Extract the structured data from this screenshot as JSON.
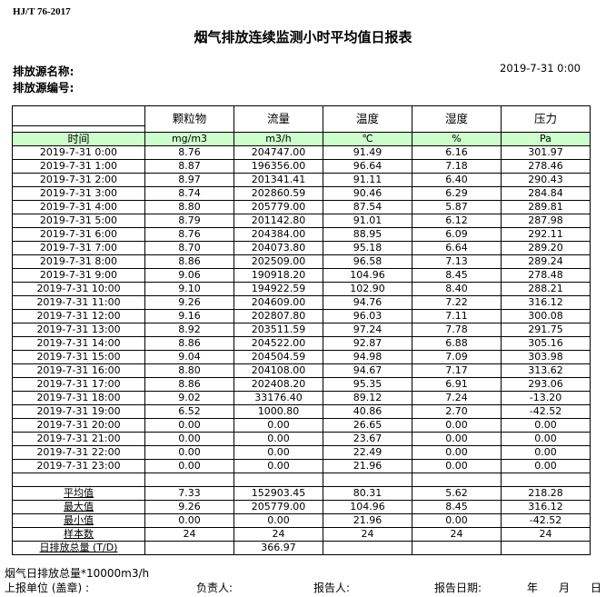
{
  "standard": "HJ/T  76-2017",
  "title": "烟气排放连续监测小时平均值日报表",
  "source_name_label": "排放源名称:",
  "source_id_label": "排放源编号:",
  "report_datetime": "2019-7-31  0:00",
  "columns": [
    "颗粒物",
    "流量",
    "温度",
    "湿度",
    "压力"
  ],
  "units": {
    "time": "时间",
    "values": [
      "mg/m3",
      "m3/h",
      "℃",
      "%",
      "Pa"
    ]
  },
  "header_color": "#ccffcc",
  "rows": [
    {
      "time": "2019-7-31  0:00",
      "values": [
        "8.76",
        "204747.00",
        "91.49",
        "6.16",
        "301.97"
      ]
    },
    {
      "time": "2019-7-31  1:00",
      "values": [
        "8.87",
        "196356.00",
        "96.64",
        "7.18",
        "278.46"
      ]
    },
    {
      "time": "2019-7-31  2:00",
      "values": [
        "8.97",
        "201341.41",
        "91.11",
        "6.40",
        "290.43"
      ]
    },
    {
      "time": "2019-7-31  3:00",
      "values": [
        "8.74",
        "202860.59",
        "90.46",
        "6.29",
        "284.84"
      ]
    },
    {
      "time": "2019-7-31  4:00",
      "values": [
        "8.80",
        "205779.00",
        "87.54",
        "5.87",
        "289.81"
      ]
    },
    {
      "time": "2019-7-31  5:00",
      "values": [
        "8.79",
        "201142.80",
        "91.01",
        "6.12",
        "287.98"
      ]
    },
    {
      "time": "2019-7-31  6:00",
      "values": [
        "8.76",
        "204384.00",
        "88.95",
        "6.09",
        "292.11"
      ]
    },
    {
      "time": "2019-7-31  7:00",
      "values": [
        "8.70",
        "204073.80",
        "95.18",
        "6.64",
        "289.20"
      ]
    },
    {
      "time": "2019-7-31  8:00",
      "values": [
        "8.86",
        "202509.00",
        "96.58",
        "7.13",
        "289.24"
      ]
    },
    {
      "time": "2019-7-31  9:00",
      "values": [
        "9.06",
        "190918.20",
        "104.96",
        "8.45",
        "278.48"
      ]
    },
    {
      "time": "2019-7-31  10:00",
      "values": [
        "9.10",
        "194922.59",
        "102.90",
        "8.40",
        "288.21"
      ]
    },
    {
      "time": "2019-7-31  11:00",
      "values": [
        "9.26",
        "204609.00",
        "94.76",
        "7.22",
        "316.12"
      ]
    },
    {
      "time": "2019-7-31  12:00",
      "values": [
        "9.16",
        "202807.80",
        "96.03",
        "7.11",
        "300.08"
      ]
    },
    {
      "time": "2019-7-31  13:00",
      "values": [
        "8.92",
        "203511.59",
        "97.24",
        "7.78",
        "291.75"
      ]
    },
    {
      "time": "2019-7-31  14:00",
      "values": [
        "8.86",
        "204522.00",
        "92.87",
        "6.88",
        "305.16"
      ]
    },
    {
      "time": "2019-7-31  15:00",
      "values": [
        "9.04",
        "204504.59",
        "94.98",
        "7.09",
        "303.98"
      ]
    },
    {
      "time": "2019-7-31  16:00",
      "values": [
        "8.80",
        "204108.00",
        "94.67",
        "7.17",
        "313.62"
      ]
    },
    {
      "time": "2019-7-31  17:00",
      "values": [
        "8.86",
        "202408.20",
        "95.35",
        "6.91",
        "293.06"
      ]
    },
    {
      "time": "2019-7-31  18:00",
      "values": [
        "9.02",
        "33176.40",
        "89.12",
        "7.24",
        "-13.20"
      ]
    },
    {
      "time": "2019-7-31  19:00",
      "values": [
        "6.52",
        "1000.80",
        "40.86",
        "2.70",
        "-42.52"
      ]
    },
    {
      "time": "2019-7-31  20:00",
      "values": [
        "0.00",
        "0.00",
        "26.65",
        "0.00",
        "0.00"
      ]
    },
    {
      "time": "2019-7-31  21:00",
      "values": [
        "0.00",
        "0.00",
        "23.67",
        "0.00",
        "0.00"
      ]
    },
    {
      "time": "2019-7-31  22:00",
      "values": [
        "0.00",
        "0.00",
        "22.49",
        "0.00",
        "0.00"
      ]
    },
    {
      "time": "2019-7-31  23:00",
      "values": [
        "0.00",
        "0.00",
        "21.96",
        "0.00",
        "0.00"
      ]
    }
  ],
  "stats": [
    {
      "label": "平均值",
      "values": [
        "7.33",
        "152903.45",
        "80.31",
        "5.62",
        "218.28"
      ]
    },
    {
      "label": "最大值",
      "values": [
        "9.26",
        "205779.00",
        "104.96",
        "8.45",
        "316.12"
      ]
    },
    {
      "label": "最小值",
      "values": [
        "0.00",
        "0.00",
        "21.96",
        "0.00",
        "-42.52"
      ]
    },
    {
      "label": "样本数",
      "values": [
        "24",
        "24",
        "24",
        "24",
        "24"
      ]
    },
    {
      "label": "日排放总量 (T/D)",
      "values": [
        "",
        "366.97",
        "",
        "",
        ""
      ]
    }
  ],
  "footer": {
    "note": "烟气日排放总量*10000m3/h",
    "unit_label": "上报单位 (盖章) :",
    "person_label": "负责人:",
    "reporter_label": "报告人:",
    "date_label": "报告日期:",
    "year": "年",
    "month": "月",
    "day": "日"
  }
}
